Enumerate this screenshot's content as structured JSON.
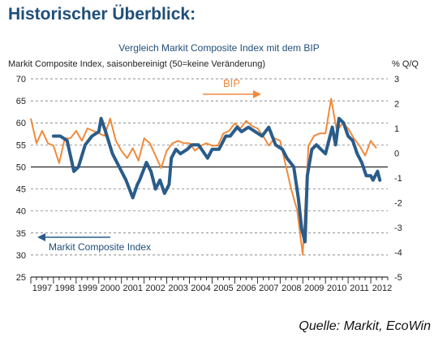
{
  "heading": "Historischer Überblick:",
  "source": "Quelle: Markit, EcoWin",
  "colors": {
    "heading": "#1f4e79",
    "pmi": "#2a5c8a",
    "gdp": "#f08a3c",
    "grid": "#666666"
  },
  "chart_data": {
    "type": "line",
    "title": "Vergleich Markit Composite Index mit dem BIP",
    "ylabel": "Markit Composite Index, saisonbereinigt (50=keine Veränderung)",
    "y2label": "% Q/Q",
    "ylim": [
      25,
      70
    ],
    "y2lim": [
      -5,
      3
    ],
    "grid": "dashed horizontal",
    "y_ticks": [
      "70",
      "65",
      "60",
      "55",
      "50",
      "45",
      "40",
      "35",
      "30",
      "25"
    ],
    "y2_ticks": [
      "3",
      "2",
      "1",
      "0",
      "-1",
      "-2",
      "-3",
      "-4",
      "-5"
    ],
    "x_ticks": [
      "1997",
      "1998",
      "1999",
      "2000",
      "2001",
      "2002",
      "2003",
      "2004",
      "2005",
      "2006",
      "2007",
      "2008",
      "2009",
      "2010",
      "2011",
      "2012"
    ],
    "series": [
      {
        "name": "Markit Composite Index",
        "axis": "left",
        "x": [
          1998.0,
          1998.3,
          1998.6,
          1998.9,
          1999.1,
          1999.4,
          1999.7,
          2000.0,
          2000.1,
          2000.3,
          2000.6,
          2000.9,
          2001.2,
          2001.5,
          2001.7,
          2001.8,
          2002.1,
          2002.3,
          2002.5,
          2002.7,
          2002.9,
          2003.1,
          2003.2,
          2003.4,
          2003.6,
          2003.9,
          2004.1,
          2004.4,
          2004.8,
          2005.0,
          2005.3,
          2005.6,
          2005.8,
          2006.1,
          2006.3,
          2006.6,
          2006.9,
          2007.2,
          2007.5,
          2007.8,
          2008.1,
          2008.3,
          2008.6,
          2008.8,
          2008.95,
          2009.1,
          2009.2,
          2009.4,
          2009.6,
          2009.8,
          2010.0,
          2010.3,
          2010.45,
          2010.6,
          2010.8,
          2011.0,
          2011.2,
          2011.4,
          2011.6,
          2011.8,
          2012.0,
          2012.1,
          2012.2,
          2012.3,
          2012.4
        ],
        "values": [
          57,
          57,
          56,
          49,
          50,
          55,
          57,
          58,
          61,
          58,
          53,
          50,
          47,
          43,
          46,
          47,
          51,
          49,
          45,
          47,
          44,
          46,
          52,
          54,
          53,
          54,
          55,
          55,
          52,
          54,
          54,
          57,
          57,
          59,
          58,
          59,
          58,
          57,
          59,
          55,
          54,
          52,
          50,
          43,
          36,
          33,
          48,
          54,
          55,
          54,
          53,
          59,
          55,
          61,
          60,
          57,
          56,
          53,
          51,
          48,
          48,
          47,
          48,
          49,
          47
        ]
      },
      {
        "name": "BIP",
        "axis": "right",
        "x": [
          1997.0,
          1997.25,
          1997.5,
          1997.75,
          1998.0,
          1998.25,
          1998.5,
          1998.75,
          1999.0,
          1999.25,
          1999.5,
          1999.75,
          2000.0,
          2000.25,
          2000.5,
          2000.75,
          2001.0,
          2001.25,
          2001.5,
          2001.75,
          2002.0,
          2002.25,
          2002.5,
          2002.75,
          2003.0,
          2003.25,
          2003.5,
          2003.75,
          2004.0,
          2004.25,
          2004.5,
          2004.75,
          2005.0,
          2005.25,
          2005.5,
          2005.75,
          2006.0,
          2006.25,
          2006.5,
          2006.75,
          2007.0,
          2007.25,
          2007.5,
          2007.75,
          2008.0,
          2008.25,
          2008.5,
          2008.75,
          2009.0,
          2009.25,
          2009.5,
          2009.75,
          2010.0,
          2010.25,
          2010.5,
          2010.75,
          2011.0,
          2011.25,
          2011.5,
          2011.75,
          2012.0,
          2012.25
        ],
        "values": [
          1.4,
          0.4,
          0.9,
          0.4,
          0.3,
          -0.4,
          0.6,
          0.6,
          0.9,
          0.5,
          1.0,
          0.9,
          0.8,
          0.7,
          1.4,
          0.5,
          0.1,
          -0.2,
          0.2,
          -0.3,
          0.6,
          0.4,
          -0.1,
          -0.6,
          0.1,
          0.4,
          0.5,
          0.4,
          0.4,
          0.1,
          0.3,
          0.4,
          0.3,
          0.3,
          0.8,
          0.9,
          1.2,
          1.0,
          1.3,
          1.1,
          1.0,
          0.7,
          0.3,
          0.6,
          0.5,
          -0.5,
          -1.5,
          -2.3,
          -4.1,
          0.3,
          0.7,
          0.8,
          0.8,
          2.2,
          0.9,
          1.2,
          1.0,
          0.6,
          0.3,
          -0.1,
          0.5,
          0.2
        ]
      }
    ],
    "annotations": [
      {
        "text": "BIP",
        "series": "BIP"
      },
      {
        "text": "Markit Composite Index",
        "series": "Markit Composite Index"
      }
    ]
  }
}
